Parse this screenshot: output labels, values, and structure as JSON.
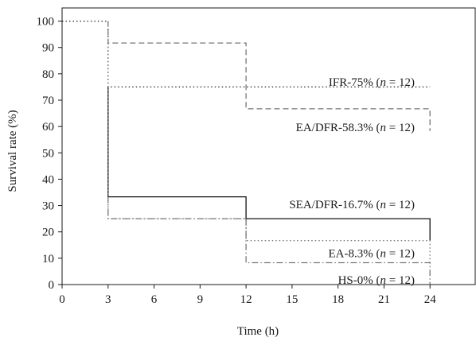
{
  "chart_data": {
    "type": "line",
    "step": true,
    "xlabel": "Time (h)",
    "ylabel": "Survival rate (%)",
    "xlim": [
      0,
      27
    ],
    "ylim": [
      0,
      105
    ],
    "xticks": [
      0,
      3,
      6,
      9,
      12,
      15,
      18,
      21,
      24
    ],
    "yticks": [
      0,
      10,
      20,
      30,
      40,
      50,
      60,
      70,
      80,
      90,
      100
    ],
    "grid": false,
    "series": [
      {
        "name": "IFR-75%",
        "label_parts": [
          "IFR-75% (",
          "n",
          " = 12)"
        ],
        "style": "dotted",
        "color": "#222222",
        "x": [
          0,
          3,
          3,
          24
        ],
        "y": [
          100,
          100,
          75,
          75
        ]
      },
      {
        "name": "EA/DFR-58.3%",
        "label_parts": [
          "EA/DFR-58.3% (",
          "n",
          " = 12)"
        ],
        "style": "dashed",
        "color": "#777777",
        "x": [
          3,
          3,
          12,
          12,
          24,
          24
        ],
        "y": [
          100,
          91.7,
          91.7,
          66.7,
          66.7,
          58.3
        ]
      },
      {
        "name": "SEA/DFR-16.7%",
        "label_parts": [
          "SEA/DFR-16.7% (",
          "n",
          " = 12)"
        ],
        "style": "solid",
        "color": "#111111",
        "x": [
          3,
          3,
          12,
          12,
          24,
          24
        ],
        "y": [
          75,
          33.3,
          33.3,
          25,
          25,
          16.7
        ]
      },
      {
        "name": "EA-8.3%",
        "label_parts": [
          "EA-8.3% (",
          "n",
          " = 12)"
        ],
        "style": "dotted",
        "color": "#777777",
        "x": [
          3,
          3,
          12,
          12,
          24,
          24
        ],
        "y": [
          91.7,
          25,
          25,
          16.7,
          16.7,
          8.3
        ]
      },
      {
        "name": "HS-0%",
        "label_parts": [
          "HS-0% (",
          "n",
          " = 12)"
        ],
        "style": "dashdot",
        "color": "#777777",
        "x": [
          3,
          3,
          12,
          12,
          24,
          24
        ],
        "y": [
          33.3,
          25,
          25,
          8.3,
          8.3,
          0
        ]
      }
    ],
    "label_positions_data": [
      {
        "x": 23.0,
        "y": 75.5,
        "anchor": "end"
      },
      {
        "x": 23.0,
        "y": 58.2,
        "anchor": "end"
      },
      {
        "x": 23.0,
        "y": 29.0,
        "anchor": "end"
      },
      {
        "x": 23.0,
        "y": 10.4,
        "anchor": "end"
      },
      {
        "x": 23.0,
        "y": 0.3,
        "anchor": "end"
      }
    ]
  }
}
